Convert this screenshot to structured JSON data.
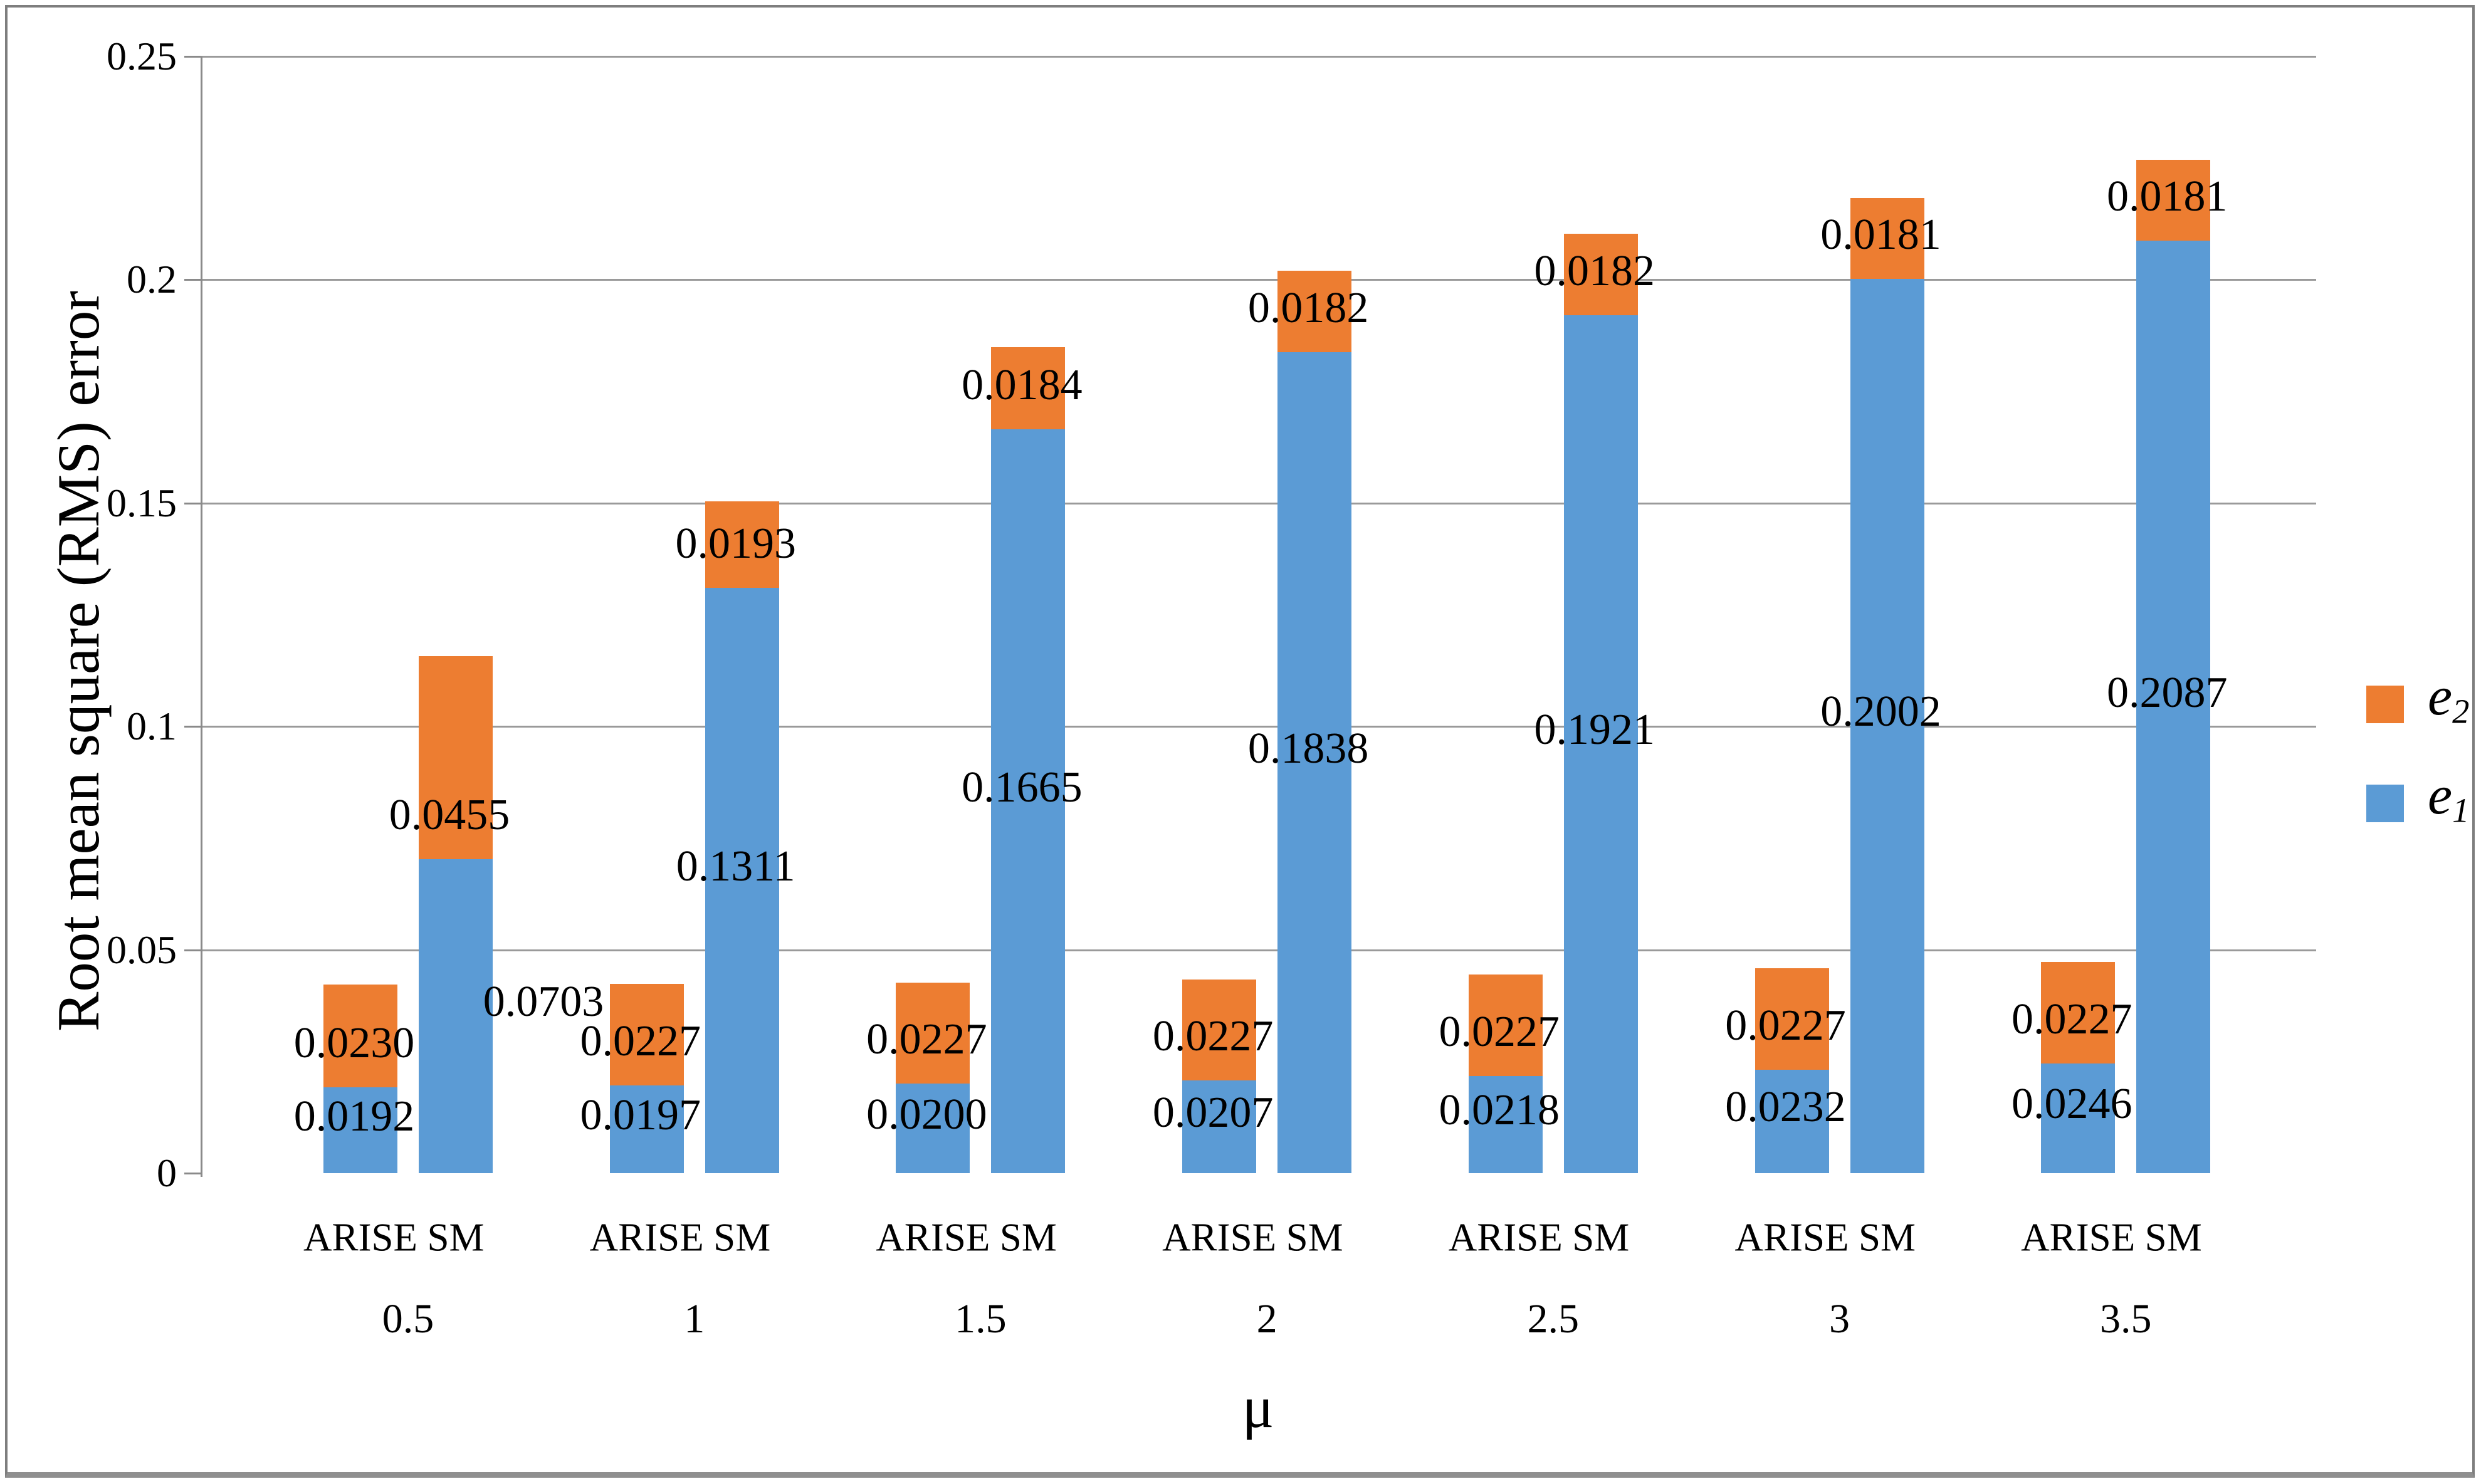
{
  "chart_data": {
    "type": "bar",
    "stacked": true,
    "title": "",
    "xlabel": "μ",
    "ylabel": "Root mean square (RMS) error",
    "ylim": [
      0,
      0.25
    ],
    "ytick_step": 0.05,
    "ytick_labels": [
      "0",
      "0.05",
      "0.1",
      "0.15",
      "0.2",
      "0.25"
    ],
    "grid": true,
    "legend_position": "right-middle",
    "series_order_bottom_to_top": [
      "e1",
      "e2"
    ],
    "colors": {
      "e1": "#5B9BD5",
      "e2": "#ED7D31",
      "gridline": "#9a9a9a",
      "axis": "#8a8a8a",
      "frame": "#7e7e7e",
      "text": "#000000"
    },
    "legend": [
      {
        "series": "e2",
        "base": "e",
        "sub": "2",
        "color": "#ED7D31"
      },
      {
        "series": "e1",
        "base": "e",
        "sub": "1",
        "color": "#5B9BD5"
      }
    ],
    "bar_method_labels": [
      "ARISE",
      "SM"
    ],
    "groups": [
      {
        "mu": "0.5",
        "bars": [
          {
            "method": "ARISE",
            "e1": "0.0192",
            "e2": "0.0230"
          },
          {
            "method": "SM",
            "e1": "0.0703",
            "e2": "0.0455",
            "e1_label_dx": 150
          }
        ]
      },
      {
        "mu": "1",
        "bars": [
          {
            "method": "ARISE",
            "e1": "0.0197",
            "e2": "0.0227"
          },
          {
            "method": "SM",
            "e1": "0.1311",
            "e2": "0.0193"
          }
        ]
      },
      {
        "mu": "1.5",
        "bars": [
          {
            "method": "ARISE",
            "e1": "0.0200",
            "e2": "0.0227"
          },
          {
            "method": "SM",
            "e1": "0.1665",
            "e2": "0.0184"
          }
        ]
      },
      {
        "mu": "2",
        "bars": [
          {
            "method": "ARISE",
            "e1": "0.0207",
            "e2": "0.0227"
          },
          {
            "method": "SM",
            "e1": "0.1838",
            "e2": "0.0182"
          }
        ]
      },
      {
        "mu": "2.5",
        "bars": [
          {
            "method": "ARISE",
            "e1": "0.0218",
            "e2": "0.0227"
          },
          {
            "method": "SM",
            "e1": "0.1921",
            "e2": "0.0182"
          }
        ]
      },
      {
        "mu": "3",
        "bars": [
          {
            "method": "ARISE",
            "e1": "0.0232",
            "e2": "0.0227"
          },
          {
            "method": "SM",
            "e1": "0.2002",
            "e2": "0.0181"
          }
        ]
      },
      {
        "mu": "3.5",
        "bars": [
          {
            "method": "ARISE",
            "e1": "0.0246",
            "e2": "0.0227"
          },
          {
            "method": "SM",
            "e1": "0.2087",
            "e2": "0.0181"
          }
        ]
      }
    ]
  }
}
